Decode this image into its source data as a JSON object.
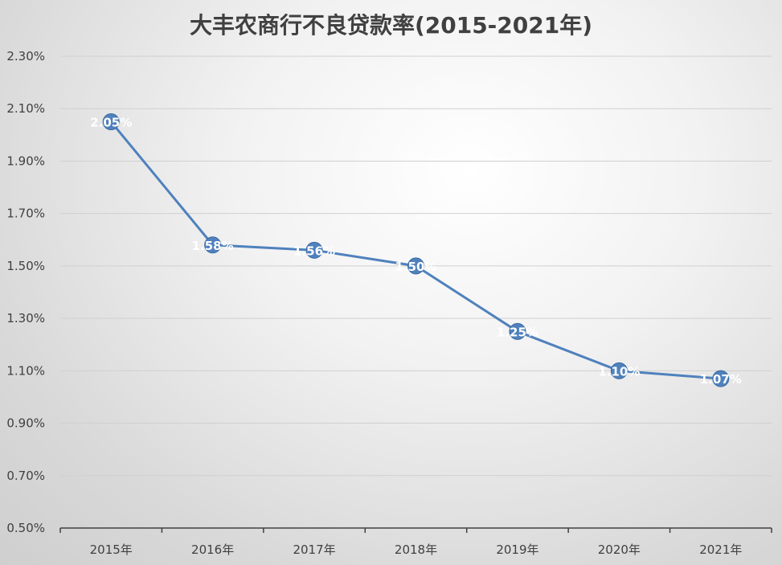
{
  "chart_data": {
    "type": "line",
    "title": "大丰农商行不良贷款率(2015-2021年)",
    "categories": [
      "2015年",
      "2016年",
      "2017年",
      "2018年",
      "2019年",
      "2020年",
      "2021年"
    ],
    "series": [
      {
        "values": [
          2.05,
          1.58,
          1.56,
          1.5,
          1.25,
          1.1,
          1.07
        ]
      }
    ],
    "data_labels": [
      "2.05%",
      "1.58%",
      "1.56%",
      "1.50%",
      "1.25%",
      "1.10%",
      "1.07%"
    ],
    "y_ticks": [
      0.5,
      0.7,
      0.9,
      1.1,
      1.3,
      1.5,
      1.7,
      1.9,
      2.1,
      2.3
    ],
    "y_tick_labels": [
      "0.50%",
      "0.70%",
      "0.90%",
      "1.10%",
      "1.30%",
      "1.50%",
      "1.70%",
      "1.90%",
      "2.10%",
      "2.30%"
    ],
    "ylim": [
      0.5,
      2.3
    ],
    "xlabel": "",
    "ylabel": "",
    "grid": true,
    "legend": "none",
    "colors": {
      "line": "#4f81bd",
      "marker": "#4f81bd",
      "grid": "#d0d0d0",
      "axis": "#404040"
    }
  }
}
